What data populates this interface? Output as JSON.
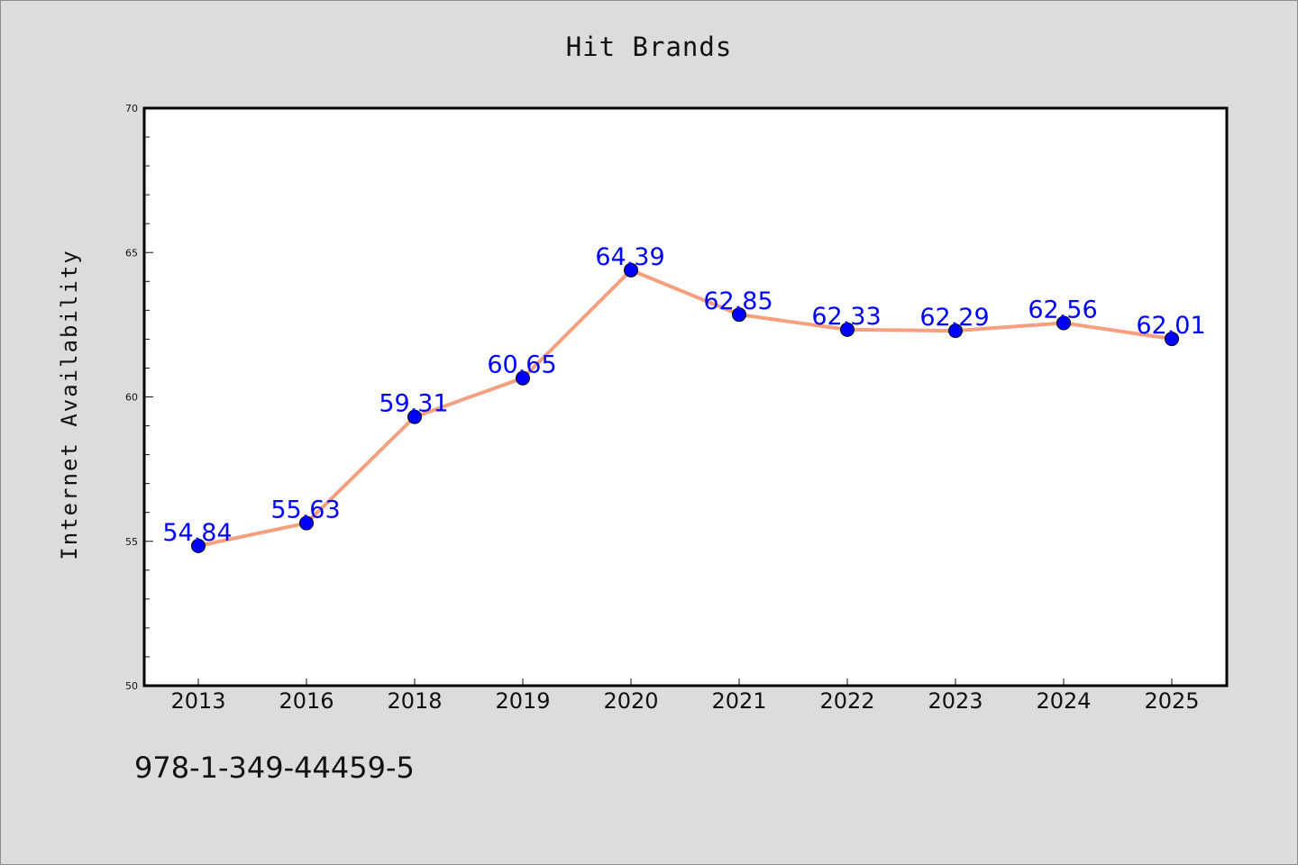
{
  "chart_data": {
    "type": "line",
    "title": "Hit Brands",
    "xlabel": "",
    "ylabel": "Internet Availability",
    "categories": [
      "2013",
      "2016",
      "2018",
      "2019",
      "2020",
      "2021",
      "2022",
      "2023",
      "2024",
      "2025"
    ],
    "series": [
      {
        "values": [
          54.84,
          55.63,
          59.31,
          60.65,
          64.39,
          62.85,
          62.33,
          62.29,
          62.56,
          62.01
        ]
      }
    ],
    "data_labels": [
      "54.84",
      "55.63",
      "59.31",
      "60.65",
      "64.39",
      "62.85",
      "62.33",
      "62.29",
      "62.56",
      "62.01"
    ],
    "ylim": [
      50,
      70
    ],
    "y_ticks": [
      "50",
      "55",
      "60",
      "65",
      "70"
    ],
    "grid": false,
    "legend": "none",
    "colors": {
      "line": "#f4a07e",
      "marker": "#0000ff",
      "label": "#0000ff",
      "background": "#dcdcdc",
      "plot_background": "#ffffff"
    }
  },
  "annotation": "978-1-349-44459-5"
}
